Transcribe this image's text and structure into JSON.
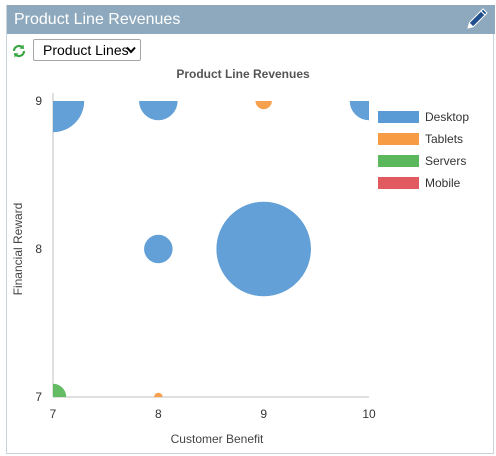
{
  "widget": {
    "title": "Product Line Revenues",
    "edit_icon": "pencil-icon",
    "refresh_icon": "refresh-icon"
  },
  "toolbar": {
    "selector_value": "Product Lines"
  },
  "colors": {
    "header_bg": "#8ea9bd",
    "axis": "#c0c0c0"
  },
  "chart_data": {
    "type": "bubble",
    "title": "Product Line Revenues",
    "xlabel": "Customer Benefit",
    "ylabel": "Financial Reward",
    "xlim": [
      7,
      10
    ],
    "ylim": [
      7,
      9
    ],
    "x_ticks": [
      "7",
      "8",
      "9",
      "10"
    ],
    "y_ticks": [
      "7",
      "8",
      "9"
    ],
    "grid": false,
    "legend_position": "right",
    "series": [
      {
        "name": "Desktop",
        "color": "#5b9bd5",
        "points": [
          {
            "x": 7,
            "y": 9,
            "size": 31
          },
          {
            "x": 8,
            "y": 9,
            "size": 19
          },
          {
            "x": 10,
            "y": 9,
            "size": 19
          },
          {
            "x": 8,
            "y": 8,
            "size": 14
          },
          {
            "x": 9,
            "y": 8,
            "size": 47
          }
        ]
      },
      {
        "name": "Tablets",
        "color": "#f79b45",
        "points": [
          {
            "x": 9,
            "y": 9,
            "size": 8
          },
          {
            "x": 8,
            "y": 7,
            "size": 4
          }
        ]
      },
      {
        "name": "Servers",
        "color": "#5cb85c",
        "points": [
          {
            "x": 7,
            "y": 7,
            "size": 13
          }
        ]
      },
      {
        "name": "Mobile",
        "color": "#e05a5f",
        "points": []
      }
    ]
  }
}
